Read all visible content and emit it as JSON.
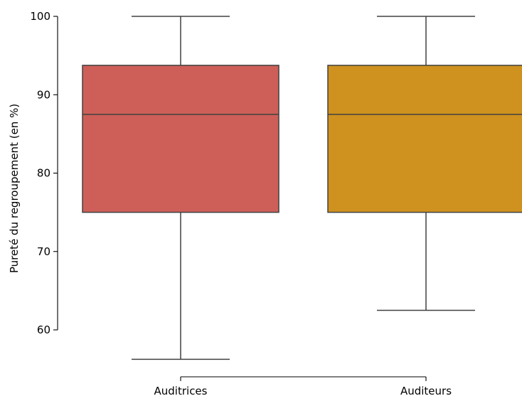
{
  "chart_data": {
    "type": "box",
    "ylabel": "Pureté du regroupement (en %)",
    "xlabel": "",
    "ylim": [
      55,
      100
    ],
    "yticks": [
      60,
      70,
      80,
      90,
      100
    ],
    "categories": [
      "Auditrices",
      "Auditeurs"
    ],
    "boxes": [
      {
        "category": "Auditrices",
        "whisker_low": 56.25,
        "q1": 75.0,
        "median": 87.5,
        "q3": 93.75,
        "whisker_high": 100.0,
        "color": "#cd5f58"
      },
      {
        "category": "Auditeurs",
        "whisker_low": 62.5,
        "q1": 75.0,
        "median": 87.5,
        "q3": 93.75,
        "whisker_high": 100.0,
        "color": "#cf921f"
      }
    ],
    "line_color": "#404040",
    "grid": false,
    "legend": "none"
  }
}
